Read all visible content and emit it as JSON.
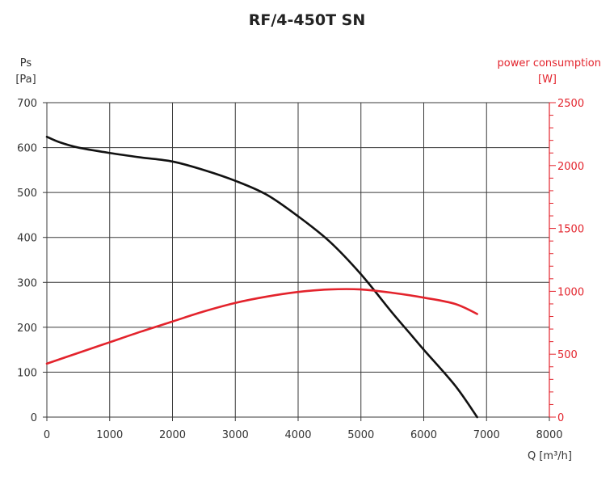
{
  "chart_data": {
    "type": "line",
    "title": "RF/4-450T SN",
    "x_axis": {
      "label": "Q [m³/h]",
      "range": [
        0,
        8000
      ],
      "ticks": [
        "0",
        "1000",
        "2000",
        "3000",
        "4000",
        "5000",
        "6000",
        "7000",
        "8000"
      ]
    },
    "y_axis_left": {
      "label_line1": "Ps",
      "label_line2": "[Pa]",
      "range": [
        0,
        700
      ],
      "ticks": [
        "0",
        "100",
        "200",
        "300",
        "400",
        "500",
        "600",
        "700"
      ]
    },
    "y_axis_right": {
      "label_line1": "power consumption",
      "label_line2": "[W]",
      "range": [
        0,
        2500
      ],
      "ticks": [
        "0",
        "500",
        "1000",
        "1500",
        "2000",
        "2500"
      ],
      "minor_step": 100
    },
    "grid": true,
    "series": [
      {
        "axis": "left",
        "color": "#111111",
        "points": [
          [
            0,
            624
          ],
          [
            200,
            612
          ],
          [
            500,
            600
          ],
          [
            1000,
            588
          ],
          [
            1500,
            578
          ],
          [
            2000,
            569
          ],
          [
            2500,
            550
          ],
          [
            3000,
            526
          ],
          [
            3500,
            495
          ],
          [
            4000,
            447
          ],
          [
            4500,
            391
          ],
          [
            5000,
            318
          ],
          [
            5500,
            232
          ],
          [
            5800,
            183
          ],
          [
            6000,
            150
          ],
          [
            6500,
            70
          ],
          [
            6850,
            0
          ]
        ]
      },
      {
        "axis": "right",
        "color": "#e3232c",
        "points": [
          [
            0,
            425
          ],
          [
            500,
            510
          ],
          [
            1000,
            595
          ],
          [
            1500,
            680
          ],
          [
            2000,
            760
          ],
          [
            2500,
            840
          ],
          [
            3000,
            908
          ],
          [
            3500,
            958
          ],
          [
            4000,
            995
          ],
          [
            4500,
            1015
          ],
          [
            5000,
            1015
          ],
          [
            5500,
            988
          ],
          [
            6000,
            950
          ],
          [
            6500,
            900
          ],
          [
            6850,
            820
          ]
        ]
      }
    ]
  }
}
